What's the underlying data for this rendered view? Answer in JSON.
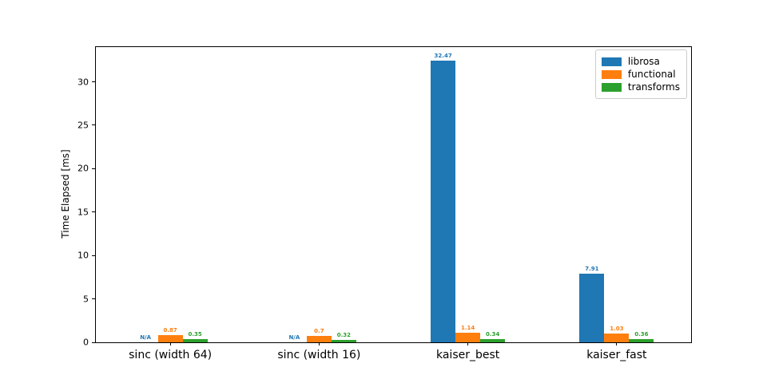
{
  "figure": {
    "background": "#ffffff",
    "axis_color": "#000000"
  },
  "chart_data": {
    "type": "bar",
    "title": "",
    "xlabel": "",
    "ylabel": "Time Elapsed [ms]",
    "categories": [
      "sinc (width 64)",
      "sinc (width 16)",
      "kaiser_best",
      "kaiser_fast"
    ],
    "series": [
      {
        "name": "librosa",
        "color": "#1f77b4",
        "values": [
          null,
          null,
          32.47,
          7.91
        ],
        "labels": [
          "N/A",
          "N/A",
          "32.47",
          "7.91"
        ]
      },
      {
        "name": "functional",
        "color": "#ff7f0e",
        "values": [
          0.87,
          0.7,
          1.14,
          1.03
        ],
        "labels": [
          "0.87",
          "0.7",
          "1.14",
          "1.03"
        ]
      },
      {
        "name": "transforms",
        "color": "#2ca02c",
        "values": [
          0.35,
          0.32,
          0.34,
          0.36
        ],
        "labels": [
          "0.35",
          "0.32",
          "0.34",
          "0.36"
        ]
      }
    ],
    "yticks": [
      0,
      5,
      10,
      15,
      20,
      25,
      30
    ],
    "ylim": [
      0,
      34
    ],
    "xlim": [
      -0.5,
      3.5
    ],
    "grid": false,
    "legend_position": "upper right"
  }
}
